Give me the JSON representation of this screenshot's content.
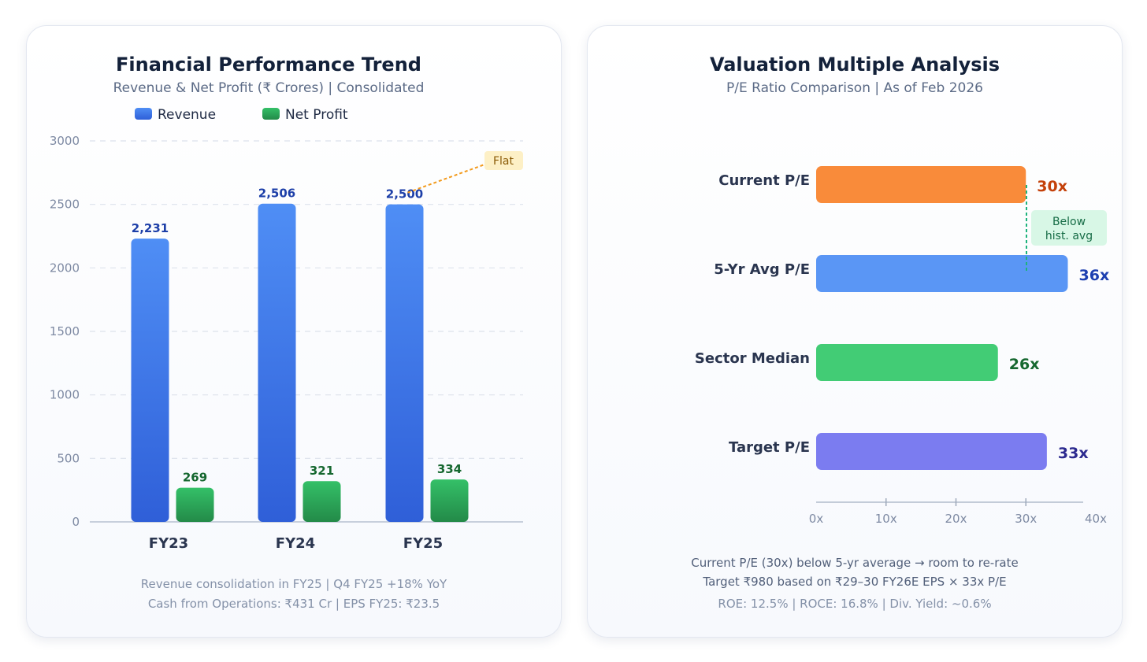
{
  "charts": [
    {
      "title": "Financial Performance Trend",
      "subtitle": "Revenue & Net Profit (₹ Crores) | Consolidated",
      "annotation": "Flat",
      "footer": [
        "Revenue consolidation in FY25 | Q4 FY25 +18% YoY",
        "Cash from Operations: ₹431 Cr | EPS FY25: ₹23.5"
      ]
    },
    {
      "title": "Valuation Multiple Analysis",
      "subtitle": "P/E Ratio Comparison | As of Feb 2026",
      "annotation": [
        "Below",
        "hist. avg"
      ],
      "footer": [
        "Current P/E (30x) below 5-yr average → room to re-rate",
        "Target ₹980 based on ₹29–30 FY26E EPS × 33x P/E",
        "ROE: 12.5% | ROCE: 16.8% | Div. Yield: ~0.6%"
      ]
    }
  ],
  "chart_data": [
    {
      "type": "bar",
      "title": "Financial Performance Trend",
      "subtitle": "Revenue & Net Profit (₹ Crores) | Consolidated",
      "categories": [
        "FY23",
        "FY24",
        "FY25"
      ],
      "series": [
        {
          "name": "Revenue",
          "values": [
            2231,
            2506,
            2500
          ],
          "labels": [
            "2,231",
            "2,506",
            "2,500"
          ],
          "color": "#3d7bef"
        },
        {
          "name": "Net Profit",
          "values": [
            269,
            321,
            334
          ],
          "labels": [
            "269",
            "321",
            "334"
          ],
          "color": "#22a653"
        }
      ],
      "ylim": [
        0,
        3000
      ],
      "yticks": [
        0,
        500,
        1000,
        1500,
        2000,
        2500,
        3000
      ],
      "grid": true,
      "legend": "top-left",
      "xlabel": "",
      "ylabel": ""
    },
    {
      "type": "bar",
      "orientation": "horizontal",
      "title": "Valuation Multiple Analysis",
      "subtitle": "P/E Ratio Comparison | As of Feb 2026",
      "categories": [
        "Current P/E",
        "5-Yr Avg P/E",
        "Sector Median",
        "Target P/E"
      ],
      "values": [
        30,
        36,
        26,
        33
      ],
      "labels": [
        "30x",
        "36x",
        "26x",
        "33x"
      ],
      "colors": [
        "#f98b3a",
        "#5a96f5",
        "#42cc75",
        "#7b7cf0"
      ],
      "label_colors": [
        "#c4410a",
        "#1d3fb0",
        "#15672f",
        "#2c2a8f"
      ],
      "xlim": [
        0,
        40
      ],
      "xticks": [
        "0x",
        "10x",
        "20x",
        "30x",
        "40x"
      ],
      "xtick_values": [
        0,
        10,
        20,
        30,
        40
      ],
      "grid": false,
      "xlabel": "",
      "ylabel": ""
    }
  ]
}
